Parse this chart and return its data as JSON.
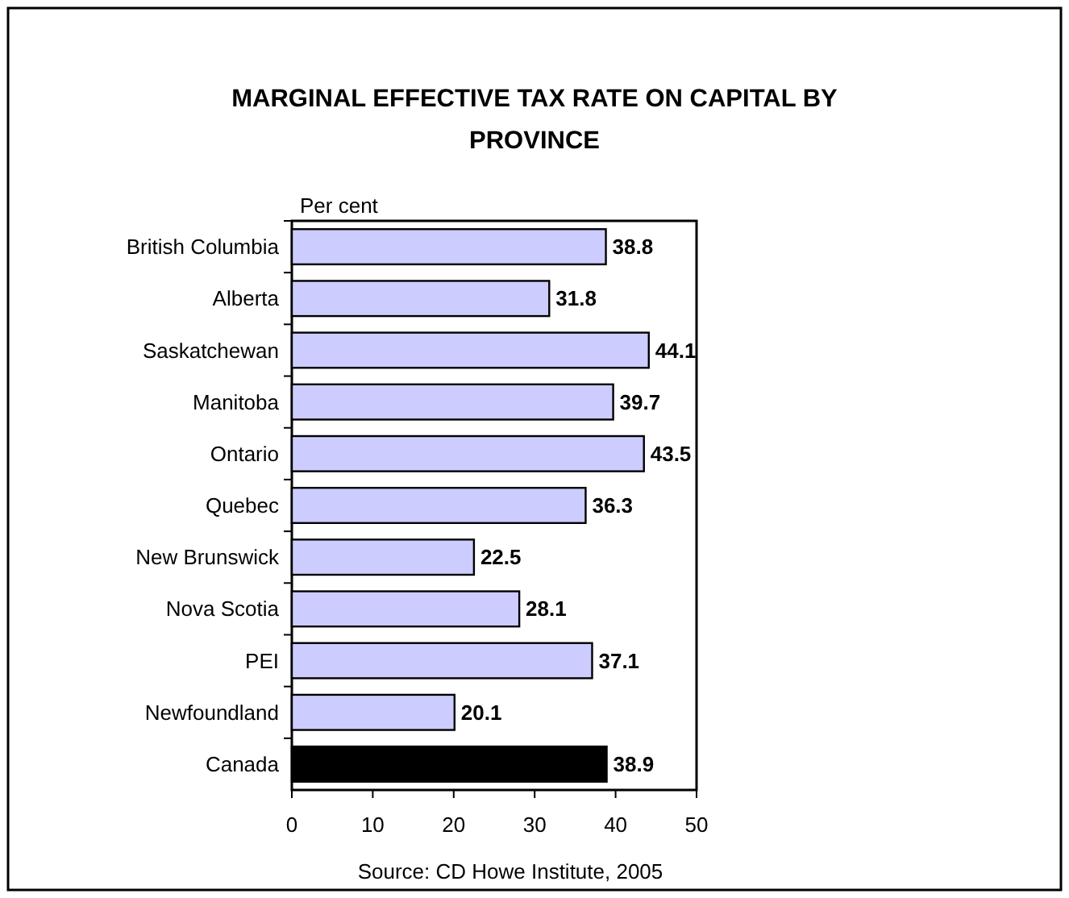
{
  "chart_data": {
    "type": "bar",
    "orientation": "horizontal",
    "title": "MARGINAL EFFECTIVE TAX RATE ON CAPITAL BY PROVINCE",
    "xlabel": "Per cent",
    "categories": [
      "British Columbia",
      "Alberta",
      "Saskatchewan",
      "Manitoba",
      "Ontario",
      "Quebec",
      "New Brunswick",
      "Nova Scotia",
      "PEI",
      "Newfoundland",
      "Canada"
    ],
    "values": [
      38.8,
      31.8,
      44.1,
      39.7,
      43.5,
      36.3,
      22.5,
      28.1,
      37.1,
      20.1,
      38.9
    ],
    "colors": [
      "#ccccff",
      "#ccccff",
      "#ccccff",
      "#ccccff",
      "#ccccff",
      "#ccccff",
      "#ccccff",
      "#ccccff",
      "#ccccff",
      "#ccccff",
      "#000000"
    ],
    "xlim": [
      0,
      50
    ],
    "xticks": [
      0,
      10,
      20,
      30,
      40,
      50
    ],
    "data_labels": true,
    "grid": false,
    "annotations": [
      "Source: CD Howe Institute, 2005"
    ]
  }
}
